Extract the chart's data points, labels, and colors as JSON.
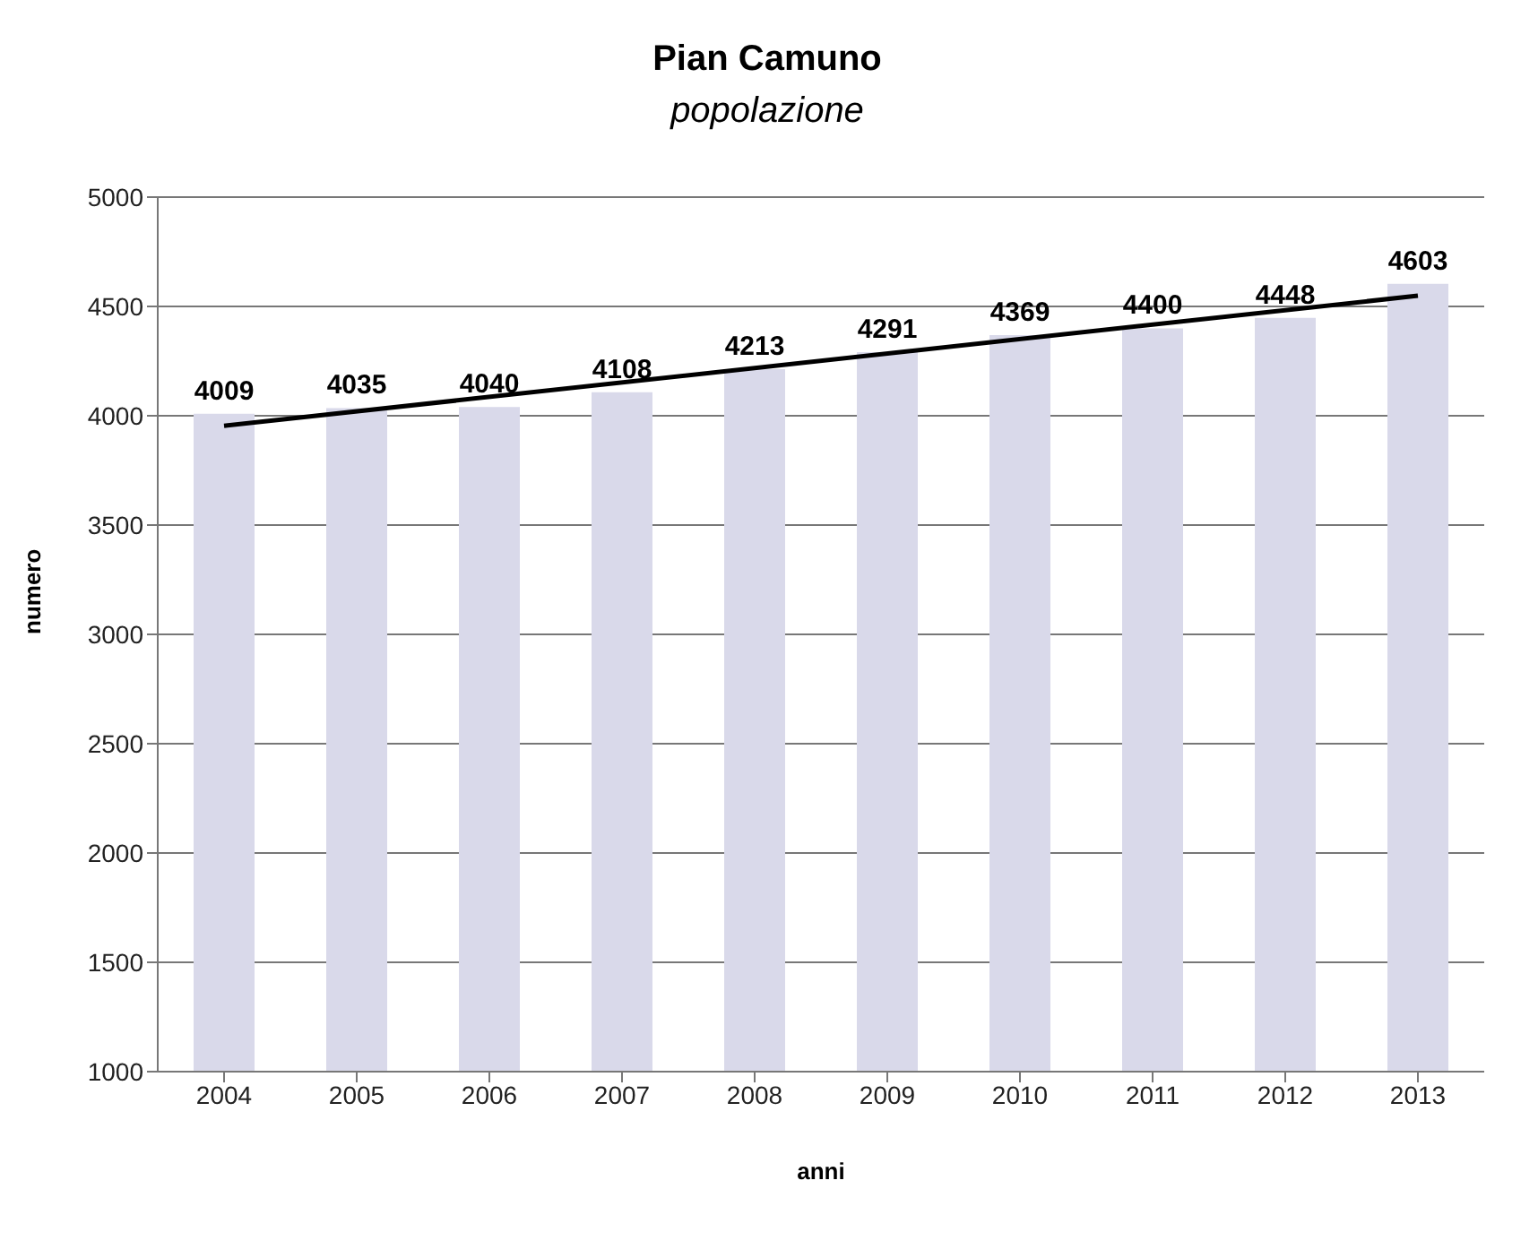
{
  "chart_data": {
    "type": "bar",
    "title": "Pian Camuno",
    "subtitle": "popolazione",
    "xlabel": "anni",
    "ylabel": "numero",
    "categories": [
      "2004",
      "2005",
      "2006",
      "2007",
      "2008",
      "2009",
      "2010",
      "2011",
      "2012",
      "2013"
    ],
    "series": [
      {
        "color": "#d9d9ea",
        "values": [
          4009,
          4035,
          4040,
          4108,
          4213,
          4291,
          4369,
          4400,
          4448,
          4603
        ],
        "value_labels": [
          "4009",
          "4035",
          "4040",
          "4108",
          "4213",
          "4291",
          "4369",
          "4400",
          "4448",
          "4603"
        ]
      },
      {
        "type": "line",
        "color": "#000000",
        "values": [
          3954,
          null,
          null,
          null,
          null,
          null,
          null,
          null,
          null,
          4549
        ]
      }
    ],
    "ylim": [
      1000,
      5000
    ],
    "yticks": [
      1000,
      1500,
      2000,
      2500,
      3000,
      3500,
      4000,
      4500,
      5000
    ],
    "grid": "y",
    "legend": false,
    "marker": "none",
    "line_style": "solid"
  }
}
